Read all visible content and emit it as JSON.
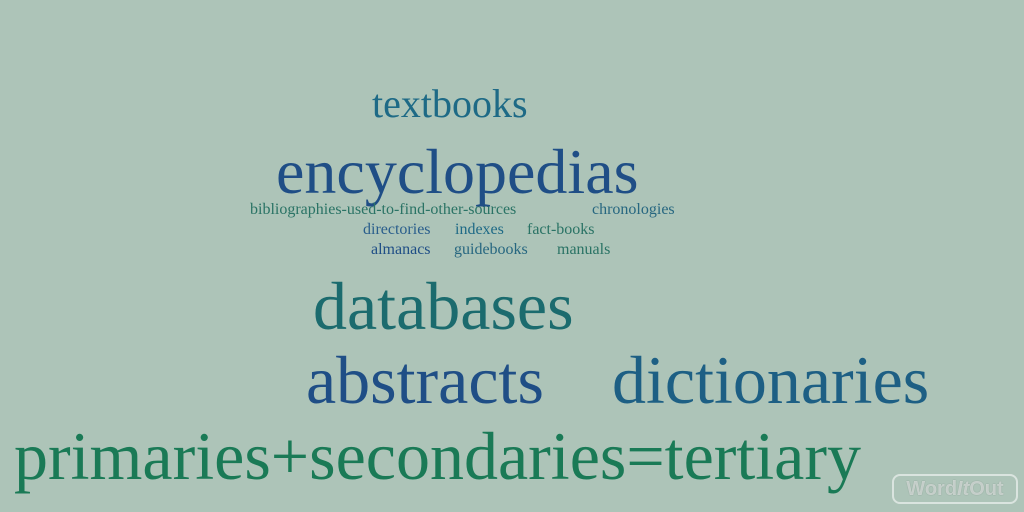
{
  "background_color": "#adc4b8",
  "words": [
    {
      "id": "textbooks",
      "text": "textbooks",
      "color": "#1e6a86"
    },
    {
      "id": "encyclopedias",
      "text": "encyclopedias",
      "color": "#1f4e86"
    },
    {
      "id": "bibliographies",
      "text": "bibliographies-used-to-find-other-sources",
      "color": "#2a7365"
    },
    {
      "id": "chronologies",
      "text": "chronologies",
      "color": "#276780"
    },
    {
      "id": "directories",
      "text": "directories",
      "color": "#2a5e8c"
    },
    {
      "id": "indexes",
      "text": "indexes",
      "color": "#1e6a86"
    },
    {
      "id": "fact-books",
      "text": "fact-books",
      "color": "#2a7365"
    },
    {
      "id": "almanacs",
      "text": "almanacs",
      "color": "#1f4e86"
    },
    {
      "id": "guidebooks",
      "text": "guidebooks",
      "color": "#276780"
    },
    {
      "id": "manuals",
      "text": "manuals",
      "color": "#2a7365"
    },
    {
      "id": "databases",
      "text": "databases",
      "color": "#1b6b6e"
    },
    {
      "id": "abstracts",
      "text": "abstracts",
      "color": "#1f4e86"
    },
    {
      "id": "dictionaries",
      "text": "dictionaries",
      "color": "#1d5f84"
    },
    {
      "id": "primaries",
      "text": "primaries+secondaries=tertiary",
      "color": "#1a7a56"
    }
  ],
  "logo": {
    "text_part1": "Word",
    "text_part2": "It",
    "text_part3": "Out"
  }
}
